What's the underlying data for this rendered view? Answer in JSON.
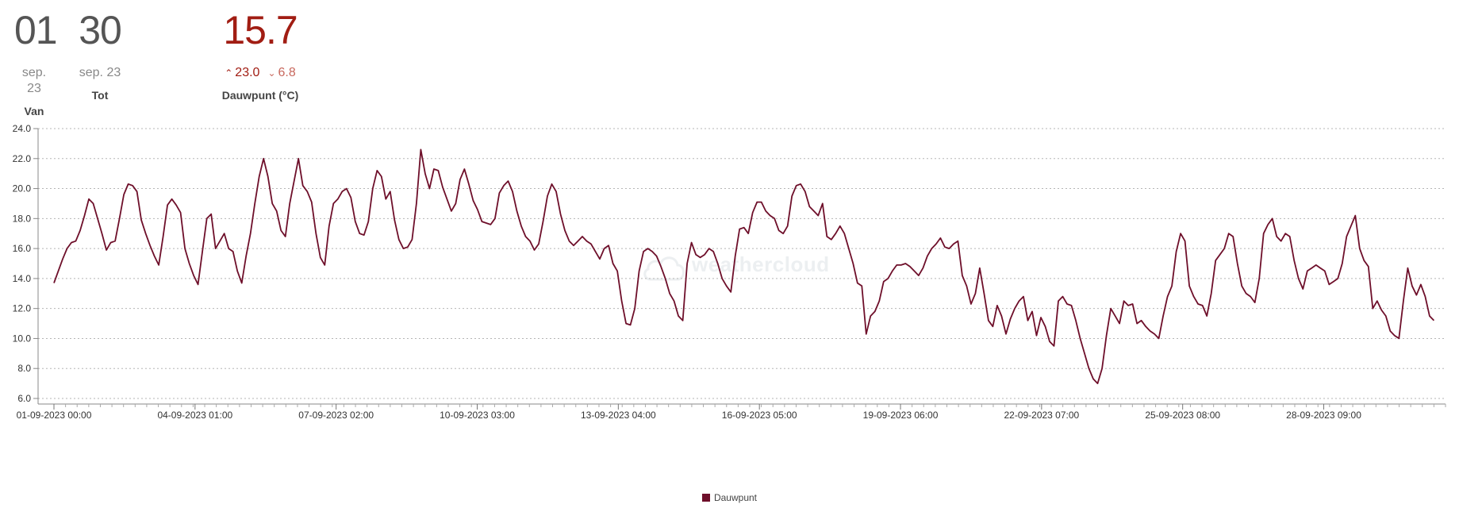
{
  "header": {
    "from": {
      "day": "01",
      "month": "sep. 23",
      "label": "Van"
    },
    "to": {
      "day": "30",
      "month": "sep. 23",
      "label": "Tot"
    },
    "current": {
      "value": "15.7",
      "max": "23.0",
      "min": "6.8",
      "label": "Dauwpunt (°C)"
    }
  },
  "colors": {
    "series": "#6e0f2a",
    "accent": "#a11d13"
  },
  "watermark": "weathercloud",
  "chart_data": {
    "type": "line",
    "title": "",
    "xlabel": "",
    "ylabel": "",
    "ylim": [
      6.0,
      24.0
    ],
    "yticks": [
      "6.0",
      "8.0",
      "10.0",
      "12.0",
      "14.0",
      "16.0",
      "18.0",
      "20.0",
      "22.0",
      "24.0"
    ],
    "xticks": [
      "01-09-2023 00:00",
      "04-09-2023 01:00",
      "07-09-2023 02:00",
      "10-09-2023 03:00",
      "13-09-2023 04:00",
      "16-09-2023 05:00",
      "19-09-2023 06:00",
      "22-09-2023 07:00",
      "25-09-2023 08:00",
      "28-09-2023 09:00"
    ],
    "grid": true,
    "legend_position": "bottom",
    "series": [
      {
        "name": "Dauwpunt",
        "x_start": "01-09-2023 00:00",
        "x_end": "30-09-2023 23:00",
        "values": [
          13.7,
          14.5,
          15.3,
          16.0,
          16.4,
          16.5,
          17.2,
          18.2,
          19.3,
          19.0,
          18.0,
          17.0,
          15.9,
          16.4,
          16.5,
          18.0,
          19.6,
          20.3,
          20.2,
          19.8,
          17.9,
          17.0,
          16.2,
          15.5,
          14.9,
          16.8,
          18.9,
          19.3,
          18.9,
          18.4,
          16.0,
          15.0,
          14.2,
          13.6,
          15.8,
          18.0,
          18.3,
          16.0,
          16.5,
          17.0,
          16.0,
          15.8,
          14.5,
          13.7,
          15.5,
          17.0,
          19.0,
          20.8,
          22.0,
          20.8,
          19.0,
          18.5,
          17.2,
          16.8,
          19.0,
          20.5,
          22.0,
          20.2,
          19.8,
          19.1,
          17.0,
          15.4,
          14.9,
          17.5,
          19.0,
          19.3,
          19.8,
          20.0,
          19.4,
          17.8,
          17.0,
          16.9,
          17.8,
          20.0,
          21.2,
          20.8,
          19.3,
          19.8,
          17.9,
          16.6,
          16.0,
          16.1,
          16.6,
          19.0,
          22.6,
          21.0,
          20.0,
          21.3,
          21.2,
          20.1,
          19.3,
          18.5,
          19.0,
          20.6,
          21.3,
          20.3,
          19.2,
          18.6,
          17.8,
          17.7,
          17.6,
          18.0,
          19.7,
          20.2,
          20.5,
          19.8,
          18.5,
          17.5,
          16.8,
          16.5,
          15.9,
          16.3,
          17.8,
          19.5,
          20.3,
          19.8,
          18.3,
          17.2,
          16.5,
          16.2,
          16.5,
          16.8,
          16.5,
          16.3,
          15.8,
          15.3,
          16.0,
          16.2,
          15.0,
          14.5,
          12.5,
          11.0,
          10.9,
          12.0,
          14.5,
          15.8,
          16.0,
          15.8,
          15.5,
          14.8,
          14.0,
          13.0,
          12.5,
          11.5,
          11.2,
          15.0,
          16.4,
          15.6,
          15.4,
          15.6,
          16.0,
          15.8,
          15.0,
          14.0,
          13.5,
          13.1,
          15.5,
          17.3,
          17.4,
          17.0,
          18.4,
          19.1,
          19.1,
          18.5,
          18.2,
          18.0,
          17.2,
          17.0,
          17.5,
          19.5,
          20.2,
          20.3,
          19.8,
          18.8,
          18.5,
          18.2,
          19.0,
          16.8,
          16.6,
          17.0,
          17.5,
          17.0,
          16.0,
          15.0,
          13.7,
          13.5,
          10.3,
          11.5,
          11.8,
          12.5,
          13.8,
          14.0,
          14.5,
          14.9,
          14.9,
          15.0,
          14.8,
          14.5,
          14.2,
          14.7,
          15.5,
          16.0,
          16.3,
          16.7,
          16.1,
          16.0,
          16.3,
          16.5,
          14.2,
          13.5,
          12.3,
          13.0,
          14.7,
          13.0,
          11.2,
          10.8,
          12.2,
          11.5,
          10.3,
          11.3,
          12.0,
          12.5,
          12.8,
          11.2,
          11.8,
          10.2,
          11.4,
          10.8,
          9.8,
          9.5,
          12.5,
          12.8,
          12.3,
          12.2,
          11.2,
          10.0,
          9.0,
          8.0,
          7.3,
          7.0,
          8.0,
          10.2,
          12.0,
          11.5,
          11.0,
          12.5,
          12.2,
          12.3,
          11.0,
          11.2,
          10.8,
          10.5,
          10.3,
          10.0,
          11.5,
          12.8,
          13.5,
          15.8,
          17.0,
          16.5,
          13.5,
          12.8,
          12.3,
          12.2,
          11.5,
          13.0,
          15.2,
          15.6,
          16.0,
          17.0,
          16.8,
          15.0,
          13.5,
          13.0,
          12.8,
          12.4,
          14.0,
          17.0,
          17.6,
          18.0,
          16.8,
          16.5,
          17.0,
          16.8,
          15.2,
          14.0,
          13.3,
          14.5,
          14.7,
          14.9,
          14.7,
          14.5,
          13.6,
          13.8,
          14.0,
          15.0,
          16.8,
          17.5,
          18.2,
          16.0,
          15.2,
          14.8,
          12.0,
          12.5,
          11.9,
          11.5,
          10.5,
          10.2,
          10.0,
          12.5,
          14.7,
          13.5,
          12.9,
          13.6,
          12.8,
          11.5,
          11.2
        ]
      }
    ]
  }
}
